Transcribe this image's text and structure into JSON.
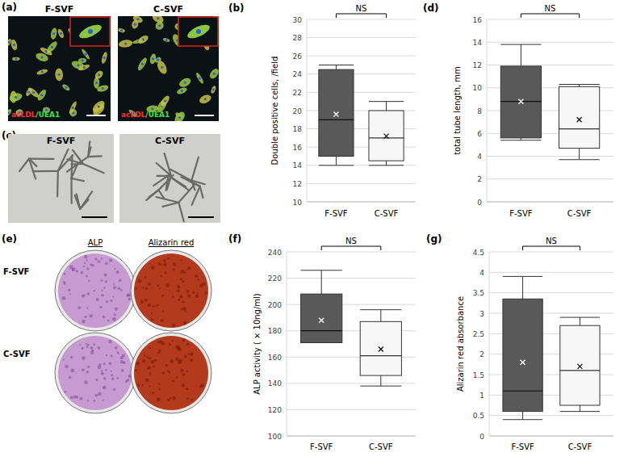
{
  "image_panels": [
    {
      "label": "(a)",
      "images": [
        "F-SVF",
        "C-SVF"
      ],
      "stain_parts": [
        "acLDL",
        "/UEA1"
      ]
    },
    {
      "label": "(c)",
      "images": [
        "F-SVF",
        "C-SVF"
      ]
    },
    {
      "label": "(e)",
      "columns": [
        "ALP",
        "Alizarin red"
      ],
      "rows": [
        "F-SVF",
        "C-SVF"
      ]
    }
  ],
  "chart_data": [
    {
      "type": "box",
      "title": "(b)",
      "y_label": "Double positive cells, /field",
      "categories": [
        "F-SVF",
        "C-SVF"
      ],
      "colors": [
        "#595959",
        "#f7f7f7"
      ],
      "boxes": [
        {
          "min": 14,
          "q1": 15,
          "median": 19,
          "q3": 24.5,
          "max": 25,
          "mean": 19.6
        },
        {
          "min": 14,
          "q1": 14.5,
          "median": 17,
          "q3": 20,
          "max": 21,
          "mean": 17.2
        }
      ],
      "annotation": "NS",
      "ylim": [
        10,
        30
      ],
      "yticks": [
        10,
        12,
        14,
        16,
        18,
        20,
        22,
        24,
        26,
        28,
        30
      ],
      "grid": true
    },
    {
      "type": "box",
      "title": "(d)",
      "y_label": "total tube length, mm",
      "categories": [
        "F-SVF",
        "C-SVF"
      ],
      "colors": [
        "#595959",
        "#f7f7f7"
      ],
      "boxes": [
        {
          "min": 5.4,
          "q1": 5.6,
          "median": 8.8,
          "q3": 11.9,
          "max": 13.8,
          "mean": 8.8
        },
        {
          "min": 3.7,
          "q1": 4.7,
          "median": 6.4,
          "q3": 10.1,
          "max": 10.3,
          "mean": 7.2
        }
      ],
      "annotation": "NS",
      "ylim": [
        0,
        16
      ],
      "yticks": [
        0,
        2,
        4,
        6,
        8,
        10,
        12,
        14,
        16
      ],
      "grid": true
    },
    {
      "type": "box",
      "title": "(f)",
      "y_label": "ALP activity ( × 10ng/ml)",
      "categories": [
        "F-SVF",
        "C-SVF"
      ],
      "colors": [
        "#595959",
        "#f7f7f7"
      ],
      "boxes": [
        {
          "min": 171,
          "q1": 171,
          "median": 180,
          "q3": 208,
          "max": 226,
          "mean": 188
        },
        {
          "min": 138,
          "q1": 146,
          "median": 161,
          "q3": 187,
          "max": 196,
          "mean": 166
        }
      ],
      "annotation": "NS",
      "ylim": [
        100,
        240
      ],
      "yticks": [
        100,
        120,
        140,
        160,
        180,
        200,
        220,
        240
      ],
      "grid": true
    },
    {
      "type": "box",
      "title": "(g)",
      "y_label": "Alizarin red absorbance",
      "categories": [
        "F-SVF",
        "C-SVF"
      ],
      "colors": [
        "#595959",
        "#f7f7f7"
      ],
      "boxes": [
        {
          "min": 0.4,
          "q1": 0.6,
          "median": 1.1,
          "q3": 3.35,
          "max": 3.9,
          "mean": 1.8
        },
        {
          "min": 0.6,
          "q1": 0.75,
          "median": 1.6,
          "q3": 2.7,
          "max": 2.9,
          "mean": 1.7
        }
      ],
      "annotation": "NS",
      "ylim": [
        0,
        4.5
      ],
      "yticks": [
        0,
        0.5,
        1,
        1.5,
        2,
        2.5,
        3,
        3.5,
        4,
        4.5
      ],
      "grid": true
    }
  ]
}
